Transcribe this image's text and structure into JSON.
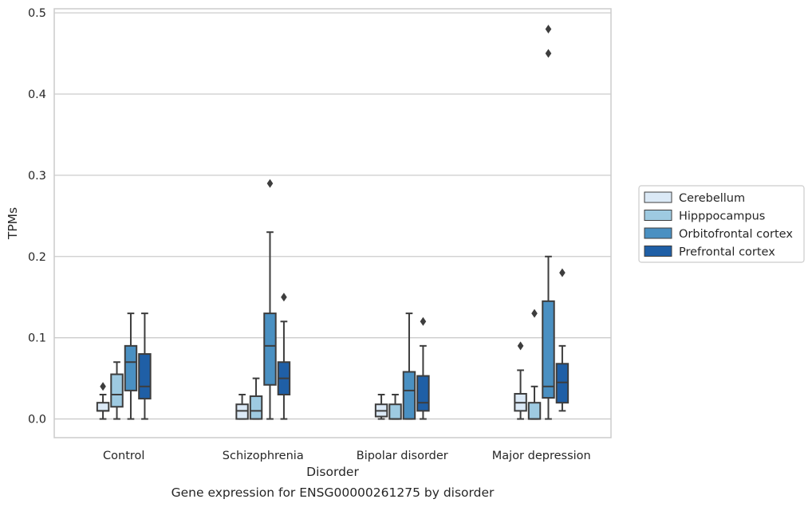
{
  "chart_data": {
    "type": "box",
    "xlabel": "Disorder",
    "ylabel": "TPMs",
    "caption": "Gene expression for ENSG00000261275 by disorder",
    "ylim": [
      -0.023,
      0.505
    ],
    "yticks": [
      "0.0",
      "0.1",
      "0.2",
      "0.3",
      "0.4",
      "0.5"
    ],
    "ytick_values": [
      0,
      0.1,
      0.2,
      0.3,
      0.4,
      0.5
    ],
    "grid": "horizontal",
    "legend_position": "right",
    "categories": [
      "Control",
      "Schizophrenia",
      "Bipolar disorder",
      "Major depression"
    ],
    "series": [
      {
        "name": "Cerebellum",
        "color": "#dbe9f6",
        "boxes": [
          {
            "whislo": 0.0,
            "q1": 0.01,
            "med": 0.01,
            "q3": 0.02,
            "whishi": 0.03,
            "fliers": [
              0.04
            ]
          },
          {
            "whislo": 0.0,
            "q1": 0.0,
            "med": 0.01,
            "q3": 0.018,
            "whishi": 0.03,
            "fliers": []
          },
          {
            "whislo": 0.0,
            "q1": 0.003,
            "med": 0.01,
            "q3": 0.018,
            "whishi": 0.03,
            "fliers": []
          },
          {
            "whislo": 0.0,
            "q1": 0.01,
            "med": 0.02,
            "q3": 0.031,
            "whishi": 0.06,
            "fliers": [
              0.09
            ]
          }
        ]
      },
      {
        "name": "Hipppocampus",
        "color": "#9ecae1",
        "boxes": [
          {
            "whislo": 0.0,
            "q1": 0.015,
            "med": 0.03,
            "q3": 0.055,
            "whishi": 0.07,
            "fliers": []
          },
          {
            "whislo": 0.0,
            "q1": 0.0,
            "med": 0.01,
            "q3": 0.028,
            "whishi": 0.05,
            "fliers": []
          },
          {
            "whislo": 0.0,
            "q1": 0.0,
            "med": 0.0,
            "q3": 0.018,
            "whishi": 0.03,
            "fliers": []
          },
          {
            "whislo": 0.0,
            "q1": 0.0,
            "med": 0.0,
            "q3": 0.02,
            "whishi": 0.04,
            "fliers": [
              0.13
            ]
          }
        ]
      },
      {
        "name": "Orbitofrontal cortex",
        "color": "#4a90c2",
        "boxes": [
          {
            "whislo": 0.0,
            "q1": 0.035,
            "med": 0.07,
            "q3": 0.09,
            "whishi": 0.13,
            "fliers": []
          },
          {
            "whislo": 0.0,
            "q1": 0.042,
            "med": 0.09,
            "q3": 0.13,
            "whishi": 0.23,
            "fliers": [
              0.29
            ]
          },
          {
            "whislo": 0.0,
            "q1": 0.0,
            "med": 0.035,
            "q3": 0.058,
            "whishi": 0.13,
            "fliers": []
          },
          {
            "whislo": 0.0,
            "q1": 0.026,
            "med": 0.04,
            "q3": 0.145,
            "whishi": 0.2,
            "fliers": [
              0.45,
              0.48
            ]
          }
        ]
      },
      {
        "name": "Prefrontal cortex",
        "color": "#1f5fa6",
        "boxes": [
          {
            "whislo": 0.0,
            "q1": 0.025,
            "med": 0.04,
            "q3": 0.08,
            "whishi": 0.13,
            "fliers": []
          },
          {
            "whislo": 0.0,
            "q1": 0.03,
            "med": 0.05,
            "q3": 0.07,
            "whishi": 0.12,
            "fliers": [
              0.15
            ]
          },
          {
            "whislo": 0.0,
            "q1": 0.01,
            "med": 0.02,
            "q3": 0.053,
            "whishi": 0.09,
            "fliers": [
              0.12
            ]
          },
          {
            "whislo": 0.01,
            "q1": 0.02,
            "med": 0.045,
            "q3": 0.068,
            "whishi": 0.09,
            "fliers": [
              0.18
            ]
          }
        ]
      }
    ]
  }
}
